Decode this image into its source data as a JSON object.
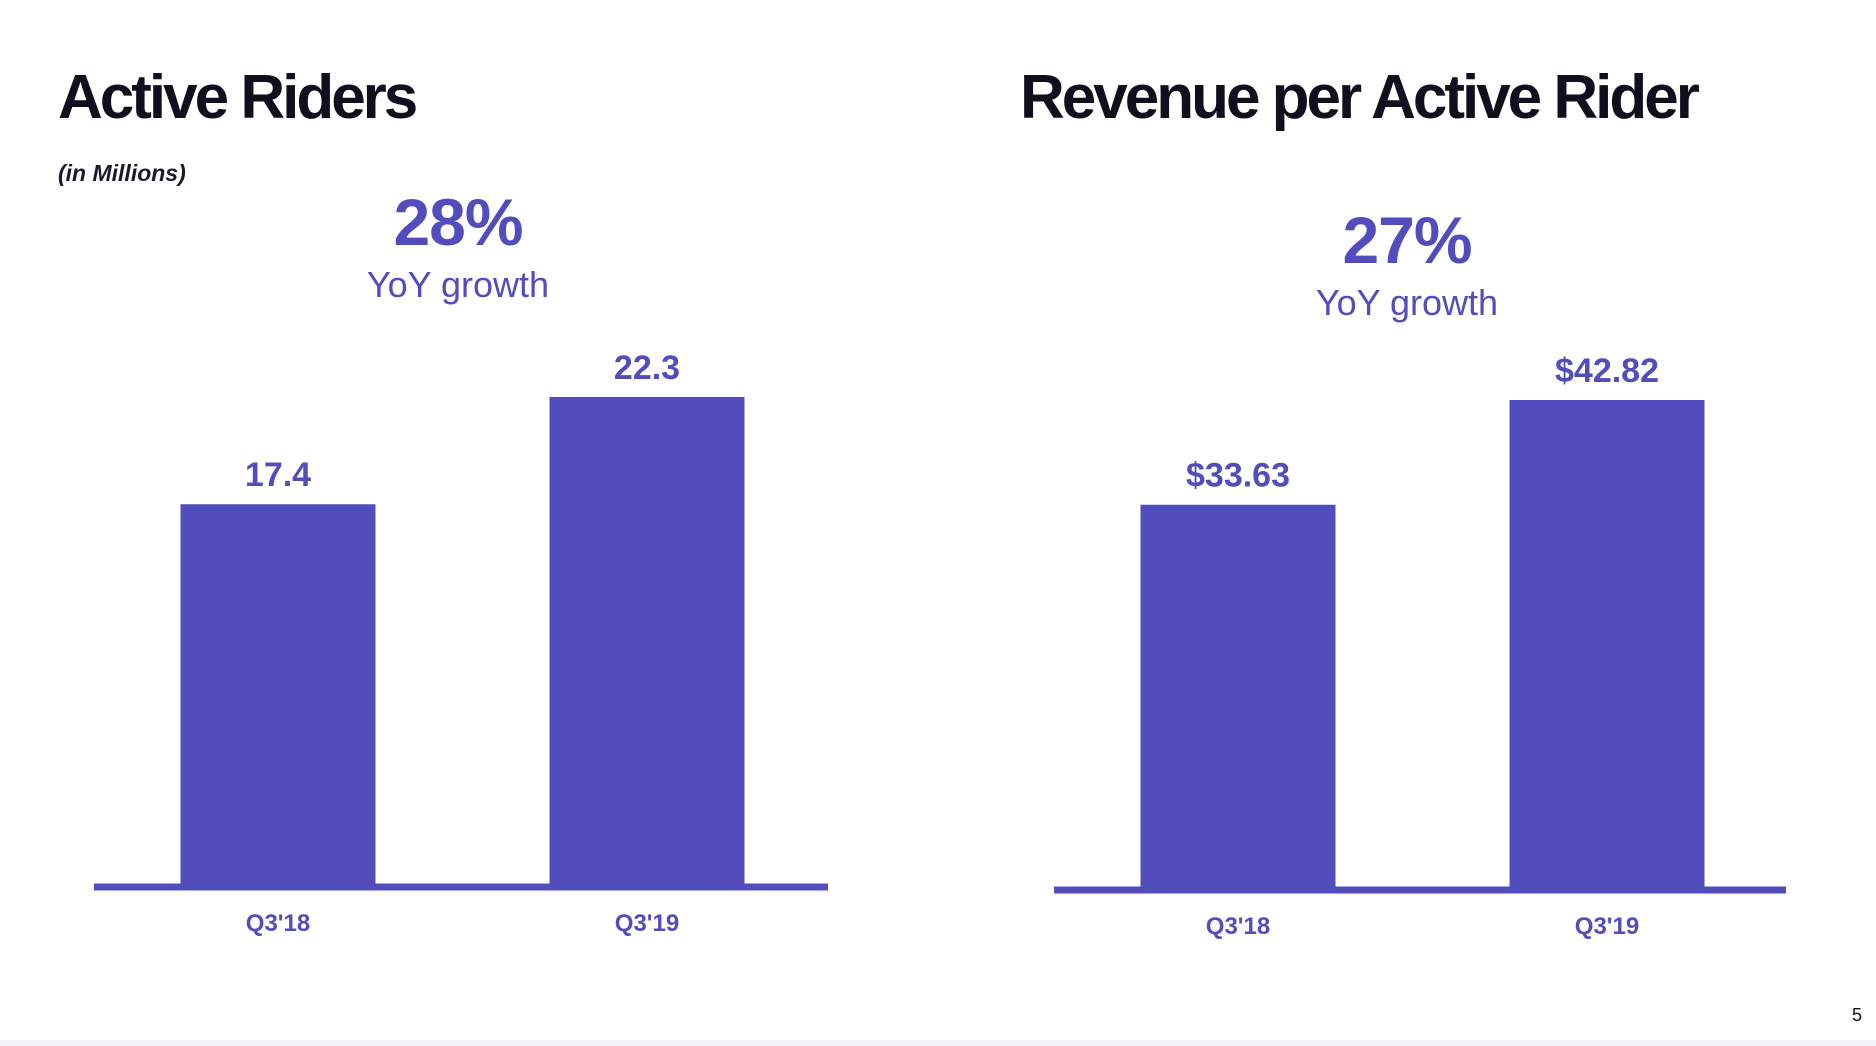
{
  "slide": {
    "page_number": "5"
  },
  "colors": {
    "bar": "#524cbd",
    "accent_text": "#524cbd",
    "title": "#0f0f1e"
  },
  "left": {
    "title": "Active Riders",
    "subtitle": "(in Millions)",
    "growth_pct": "28%",
    "growth_label": "YoY growth"
  },
  "right": {
    "title": "Revenue per Active Rider",
    "growth_pct": "27%",
    "growth_label": "YoY growth"
  },
  "chart_data": [
    {
      "type": "bar",
      "title": "Active Riders",
      "subtitle": "(in Millions)",
      "categories": [
        "Q3'18",
        "Q3'19"
      ],
      "values": [
        17.4,
        22.3
      ],
      "value_labels": [
        "17.4",
        "22.3"
      ],
      "ylim": [
        0,
        22.3
      ],
      "grid": false,
      "annotation": "28% YoY growth"
    },
    {
      "type": "bar",
      "title": "Revenue per Active Rider",
      "categories": [
        "Q3'18",
        "Q3'19"
      ],
      "values": [
        33.63,
        42.82
      ],
      "value_labels": [
        "$33.63",
        "$42.82"
      ],
      "ylim": [
        0,
        42.82
      ],
      "grid": false,
      "annotation": "27% YoY growth"
    }
  ]
}
